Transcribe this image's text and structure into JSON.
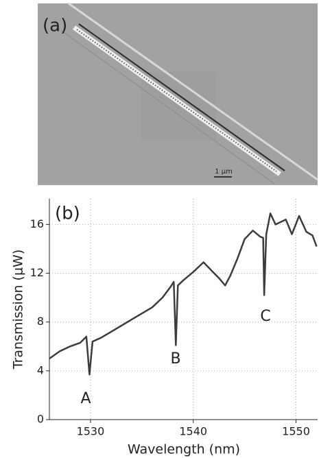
{
  "panel_a": {
    "label": "(a)",
    "scale_bar": "1 μm"
  },
  "chart_data": {
    "type": "line",
    "panel_label": "(b)",
    "x_label": "Wavelength (nm)",
    "y_label": "Transmission (μW)",
    "x": [
      1526,
      1527,
      1528,
      1529,
      1529.6,
      1529.9,
      1530.2,
      1531,
      1532,
      1533,
      1534,
      1535,
      1536,
      1537,
      1537.8,
      1538.1,
      1538.3,
      1538.5,
      1539,
      1540,
      1541,
      1541.8,
      1542.5,
      1543.1,
      1543.6,
      1544.3,
      1545,
      1545.8,
      1546.5,
      1546.8,
      1546.9,
      1547.1,
      1547.5,
      1548,
      1549,
      1549.6,
      1550.3,
      1551,
      1551.6,
      1552
    ],
    "values": [
      5.0,
      5.6,
      6.0,
      6.3,
      6.8,
      3.7,
      6.4,
      6.7,
      7.2,
      7.7,
      8.2,
      8.7,
      9.2,
      10.0,
      10.9,
      11.3,
      6.1,
      11.0,
      11.4,
      12.1,
      12.9,
      12.2,
      11.6,
      11.0,
      11.8,
      13.2,
      14.8,
      15.5,
      15.0,
      14.9,
      10.2,
      15.2,
      16.9,
      16.0,
      16.4,
      15.2,
      16.7,
      15.4,
      15.1,
      14.2
    ],
    "color": "#3c3c3c",
    "annotations": [
      "A",
      "B",
      "C"
    ],
    "xlim": [
      1526,
      1552.1
    ],
    "ylim": [
      0,
      18.1
    ],
    "xticks": [
      1530,
      1540,
      1550
    ],
    "yticks": [
      0,
      4,
      8,
      12,
      16
    ],
    "grid": true
  }
}
